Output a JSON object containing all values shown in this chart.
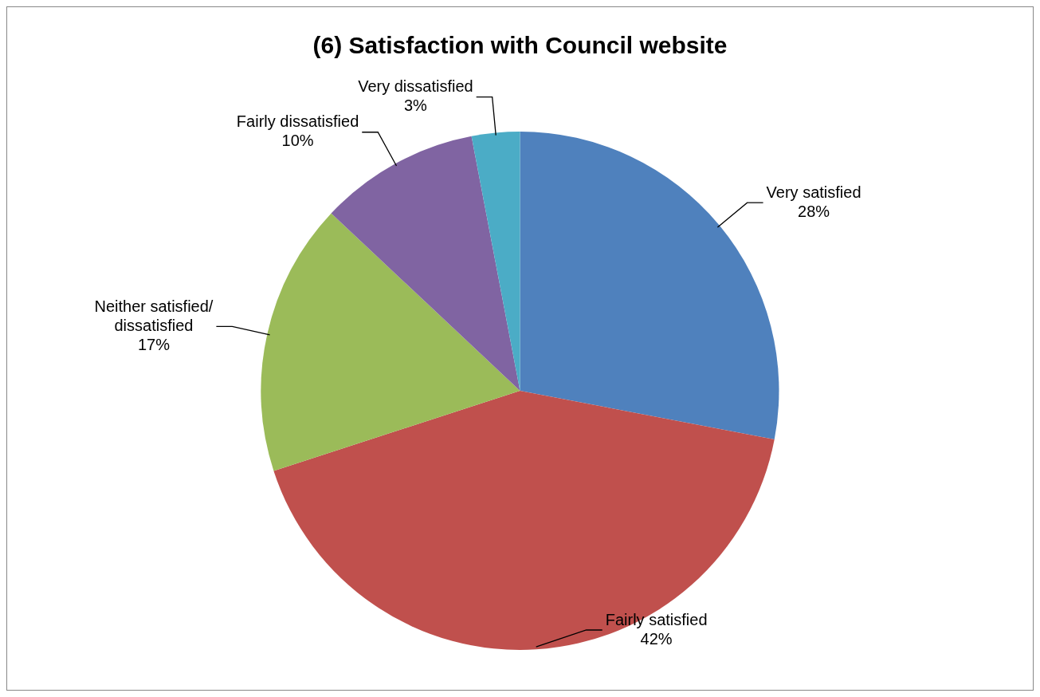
{
  "chart_data": {
    "type": "pie",
    "title": "(6) Satisfaction with Council website",
    "categories": [
      "Very satisfied",
      "Fairly satisfied",
      "Neither satisfied/ dissatisfied",
      "Fairly dissatisfied",
      "Very dissatisfied"
    ],
    "values": [
      28,
      42,
      17,
      10,
      3
    ],
    "value_labels": [
      "28%",
      "42%",
      "17%",
      "10%",
      "3%"
    ],
    "colors": [
      "#4f81bd",
      "#c0504d",
      "#9bbb59",
      "#8064a2",
      "#4bacc6"
    ],
    "legend": false
  }
}
